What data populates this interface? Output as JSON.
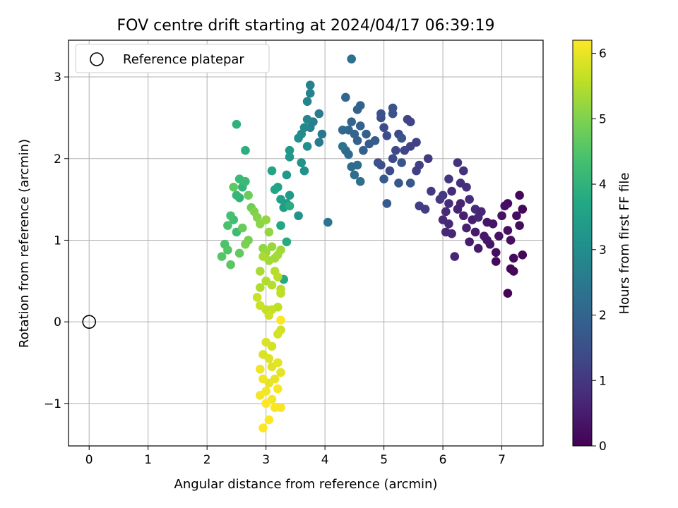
{
  "chart_data": {
    "type": "scatter",
    "title": "FOV centre drift starting at 2024/04/17 06:39:19",
    "xlabel": "Angular distance from reference (arcmin)",
    "ylabel": "Rotation from reference (arcmin)",
    "xlim": [
      -0.35,
      7.7
    ],
    "ylim": [
      -1.52,
      3.45
    ],
    "xticks": [
      0,
      1,
      2,
      3,
      4,
      5,
      6,
      7
    ],
    "yticks": [
      -1,
      0,
      1,
      2,
      3
    ],
    "xtick_labels": [
      "0",
      "1",
      "2",
      "3",
      "4",
      "5",
      "6",
      "7"
    ],
    "ytick_labels": [
      "−1",
      "0",
      "1",
      "2",
      "3"
    ],
    "grid": true,
    "legend": {
      "position": "upper-left",
      "entries": [
        "Reference platepar"
      ]
    },
    "reference_point": {
      "x": 0,
      "y": 0
    },
    "colorbar": {
      "label": "Hours from first FF file",
      "colormap": "viridis",
      "range": [
        0,
        6.2
      ],
      "ticks": [
        0,
        1,
        2,
        3,
        4,
        5,
        6
      ],
      "tick_labels": [
        "0",
        "1",
        "2",
        "3",
        "4",
        "5",
        "6"
      ]
    },
    "points": [
      [
        7.1,
        0.35,
        0.05
      ],
      [
        7.2,
        0.62,
        0.05
      ],
      [
        7.15,
        0.65,
        0.1
      ],
      [
        7.35,
        0.82,
        0.1
      ],
      [
        7.2,
        0.78,
        0.15
      ],
      [
        6.9,
        0.74,
        0.15
      ],
      [
        6.9,
        0.85,
        0.2
      ],
      [
        7.3,
        1.18,
        0.2
      ],
      [
        7.35,
        1.38,
        0.1
      ],
      [
        7.3,
        1.55,
        0.1
      ],
      [
        7.1,
        1.45,
        0.2
      ],
      [
        7.05,
        1.42,
        0.25
      ],
      [
        7.0,
        1.3,
        0.3
      ],
      [
        7.25,
        1.3,
        0.2
      ],
      [
        7.1,
        1.12,
        0.25
      ],
      [
        7.15,
        1.0,
        0.25
      ],
      [
        6.95,
        1.05,
        0.3
      ],
      [
        6.85,
        1.2,
        0.35
      ],
      [
        6.75,
        1.22,
        0.35
      ],
      [
        6.8,
        0.95,
        0.35
      ],
      [
        6.75,
        1.0,
        0.4
      ],
      [
        6.7,
        1.05,
        0.4
      ],
      [
        6.6,
        0.9,
        0.45
      ],
      [
        6.55,
        1.1,
        0.45
      ],
      [
        6.5,
        1.25,
        0.5
      ],
      [
        6.45,
        0.98,
        0.5
      ],
      [
        6.4,
        1.15,
        0.55
      ],
      [
        6.35,
        1.3,
        0.55
      ],
      [
        6.3,
        1.45,
        0.6
      ],
      [
        6.25,
        1.38,
        0.6
      ],
      [
        6.2,
        0.8,
        0.65
      ],
      [
        6.15,
        1.08,
        0.65
      ],
      [
        6.1,
        1.2,
        0.7
      ],
      [
        6.05,
        1.1,
        0.7
      ],
      [
        6.0,
        1.25,
        0.75
      ],
      [
        6.05,
        1.35,
        0.75
      ],
      [
        6.1,
        1.45,
        0.8
      ],
      [
        6.15,
        1.6,
        0.8
      ],
      [
        6.3,
        1.7,
        0.85
      ],
      [
        6.4,
        1.65,
        0.85
      ],
      [
        6.45,
        1.5,
        0.8
      ],
      [
        6.55,
        1.38,
        0.75
      ],
      [
        6.6,
        1.28,
        0.7
      ],
      [
        6.65,
        1.35,
        0.65
      ],
      [
        6.35,
        1.85,
        0.9
      ],
      [
        6.25,
        1.95,
        0.9
      ],
      [
        6.1,
        1.75,
        0.95
      ],
      [
        6.0,
        1.55,
        1.0
      ],
      [
        5.95,
        1.5,
        1.0
      ],
      [
        5.8,
        1.6,
        1.05
      ],
      [
        5.75,
        2.0,
        1.05
      ],
      [
        5.7,
        1.38,
        1.1
      ],
      [
        5.6,
        1.42,
        1.1
      ],
      [
        5.6,
        1.92,
        1.15
      ],
      [
        5.55,
        1.85,
        1.15
      ],
      [
        5.55,
        2.2,
        1.2
      ],
      [
        5.45,
        2.15,
        1.2
      ],
      [
        5.45,
        2.45,
        1.25
      ],
      [
        5.4,
        2.48,
        1.25
      ],
      [
        5.35,
        2.1,
        1.3
      ],
      [
        5.3,
        2.25,
        1.3
      ],
      [
        5.25,
        2.3,
        1.35
      ],
      [
        5.2,
        2.1,
        1.35
      ],
      [
        5.15,
        2.0,
        1.4
      ],
      [
        5.1,
        1.85,
        1.4
      ],
      [
        5.05,
        2.28,
        1.45
      ],
      [
        5.0,
        2.38,
        1.45
      ],
      [
        4.95,
        2.5,
        1.5
      ],
      [
        4.95,
        1.92,
        1.5
      ],
      [
        4.9,
        1.95,
        1.55
      ],
      [
        4.95,
        2.55,
        1.55
      ],
      [
        5.15,
        2.62,
        1.6
      ],
      [
        5.15,
        2.55,
        1.6
      ],
      [
        5.3,
        2.25,
        1.65
      ],
      [
        5.3,
        1.95,
        1.65
      ],
      [
        5.45,
        1.7,
        1.7
      ],
      [
        5.25,
        1.7,
        1.7
      ],
      [
        5.05,
        1.45,
        1.75
      ],
      [
        5.0,
        1.75,
        1.75
      ],
      [
        4.85,
        2.22,
        1.8
      ],
      [
        4.75,
        2.18,
        1.8
      ],
      [
        4.7,
        2.3,
        1.85
      ],
      [
        4.65,
        2.1,
        1.85
      ],
      [
        4.55,
        2.22,
        1.9
      ],
      [
        4.6,
        2.4,
        1.9
      ],
      [
        4.6,
        2.65,
        1.95
      ],
      [
        4.55,
        2.6,
        1.95
      ],
      [
        4.5,
        2.3,
        2.0
      ],
      [
        4.45,
        2.45,
        2.0
      ],
      [
        4.4,
        2.35,
        2.05
      ],
      [
        4.35,
        2.75,
        2.05
      ],
      [
        4.3,
        2.35,
        2.1
      ],
      [
        4.35,
        2.1,
        2.1
      ],
      [
        4.4,
        2.05,
        2.15
      ],
      [
        4.45,
        1.9,
        2.15
      ],
      [
        4.5,
        1.8,
        2.2
      ],
      [
        4.55,
        1.92,
        2.2
      ],
      [
        4.6,
        1.72,
        2.25
      ],
      [
        4.45,
        3.22,
        2.3
      ],
      [
        4.3,
        2.15,
        2.35
      ],
      [
        4.05,
        1.22,
        2.4
      ],
      [
        3.95,
        2.3,
        2.45
      ],
      [
        3.9,
        2.2,
        2.5
      ],
      [
        3.9,
        2.55,
        2.55
      ],
      [
        3.8,
        2.45,
        2.6
      ],
      [
        3.75,
        2.38,
        2.65
      ],
      [
        3.75,
        2.9,
        2.7
      ],
      [
        3.75,
        2.8,
        2.75
      ],
      [
        3.7,
        2.7,
        2.8
      ],
      [
        3.7,
        2.48,
        2.85
      ],
      [
        3.65,
        2.38,
        2.9
      ],
      [
        3.6,
        2.3,
        2.95
      ],
      [
        3.55,
        2.25,
        3.0
      ],
      [
        3.7,
        2.15,
        3.05
      ],
      [
        3.65,
        1.85,
        3.1
      ],
      [
        3.6,
        1.95,
        3.15
      ],
      [
        3.55,
        1.3,
        3.2
      ],
      [
        3.4,
        2.1,
        3.25
      ],
      [
        3.4,
        2.02,
        3.3
      ],
      [
        3.35,
        1.8,
        3.3
      ],
      [
        3.4,
        1.55,
        3.35
      ],
      [
        3.35,
        1.45,
        3.4
      ],
      [
        3.3,
        1.4,
        3.45
      ],
      [
        3.25,
        1.5,
        3.5
      ],
      [
        3.2,
        1.65,
        3.55
      ],
      [
        3.15,
        1.62,
        3.6
      ],
      [
        3.1,
        1.85,
        3.65
      ],
      [
        3.25,
        1.18,
        3.7
      ],
      [
        3.3,
        0.52,
        3.75
      ],
      [
        3.35,
        0.98,
        3.8
      ],
      [
        3.4,
        1.42,
        3.85
      ],
      [
        2.65,
        2.1,
        3.9
      ],
      [
        2.5,
        2.42,
        3.95
      ],
      [
        2.55,
        1.52,
        4.0
      ],
      [
        2.6,
        1.65,
        4.05
      ],
      [
        2.5,
        1.55,
        4.1
      ],
      [
        2.55,
        1.75,
        4.15
      ],
      [
        2.65,
        1.72,
        4.2
      ],
      [
        2.5,
        1.1,
        4.25
      ],
      [
        2.45,
        1.25,
        4.3
      ],
      [
        2.4,
        1.3,
        4.35
      ],
      [
        2.35,
        1.18,
        4.4
      ],
      [
        2.3,
        0.95,
        4.45
      ],
      [
        2.35,
        0.88,
        4.5
      ],
      [
        2.25,
        0.8,
        4.55
      ],
      [
        2.4,
        0.7,
        4.6
      ],
      [
        2.45,
        1.65,
        4.65
      ],
      [
        2.55,
        0.84,
        4.7
      ],
      [
        2.6,
        1.15,
        4.75
      ],
      [
        2.7,
        1.55,
        4.8
      ],
      [
        2.75,
        1.4,
        4.85
      ],
      [
        2.7,
        1.0,
        4.9
      ],
      [
        2.65,
        0.95,
        4.95
      ],
      [
        2.8,
        1.35,
        5.0
      ],
      [
        2.85,
        1.28,
        5.05
      ],
      [
        2.9,
        1.2,
        5.1
      ],
      [
        2.95,
        0.9,
        5.15
      ],
      [
        3.0,
        1.25,
        5.2
      ],
      [
        3.05,
        1.1,
        5.2
      ],
      [
        3.0,
        0.85,
        5.25
      ],
      [
        3.1,
        0.92,
        5.25
      ],
      [
        3.15,
        0.78,
        5.3
      ],
      [
        3.25,
        0.88,
        5.3
      ],
      [
        3.2,
        0.82,
        5.35
      ],
      [
        3.05,
        0.75,
        5.35
      ],
      [
        2.95,
        0.8,
        5.4
      ],
      [
        2.9,
        0.62,
        5.4
      ],
      [
        2.9,
        0.42,
        5.45
      ],
      [
        3.0,
        0.5,
        5.45
      ],
      [
        3.1,
        0.45,
        5.5
      ],
      [
        3.15,
        0.62,
        5.5
      ],
      [
        3.2,
        0.55,
        5.55
      ],
      [
        3.25,
        0.4,
        5.55
      ],
      [
        3.25,
        0.35,
        5.6
      ],
      [
        3.2,
        0.18,
        5.6
      ],
      [
        3.1,
        0.15,
        5.65
      ],
      [
        3.0,
        0.15,
        5.65
      ],
      [
        2.9,
        0.2,
        5.7
      ],
      [
        2.85,
        0.3,
        5.7
      ],
      [
        3.05,
        0.08,
        5.75
      ],
      [
        3.25,
        -0.1,
        5.75
      ],
      [
        3.2,
        -0.15,
        5.8
      ],
      [
        3.1,
        -0.3,
        5.8
      ],
      [
        3.0,
        -0.25,
        5.85
      ],
      [
        2.95,
        -0.4,
        5.85
      ],
      [
        3.05,
        -0.45,
        5.9
      ],
      [
        3.1,
        -0.55,
        5.9
      ],
      [
        3.2,
        -0.5,
        5.95
      ],
      [
        3.25,
        -0.62,
        5.95
      ],
      [
        3.15,
        -0.7,
        6.0
      ],
      [
        3.05,
        -0.75,
        6.0
      ],
      [
        2.95,
        -0.7,
        6.05
      ],
      [
        2.9,
        -0.58,
        6.05
      ],
      [
        3.0,
        -0.85,
        6.1
      ],
      [
        2.9,
        -0.9,
        6.1
      ],
      [
        3.1,
        -0.95,
        6.1
      ],
      [
        3.2,
        -0.82,
        6.15
      ],
      [
        3.15,
        -1.05,
        6.15
      ],
      [
        3.0,
        -1.0,
        6.2
      ],
      [
        2.95,
        -1.3,
        6.2
      ],
      [
        3.05,
        -1.2,
        6.2
      ],
      [
        3.25,
        0.02,
        6.2
      ],
      [
        3.25,
        -1.05,
        6.15
      ]
    ]
  }
}
